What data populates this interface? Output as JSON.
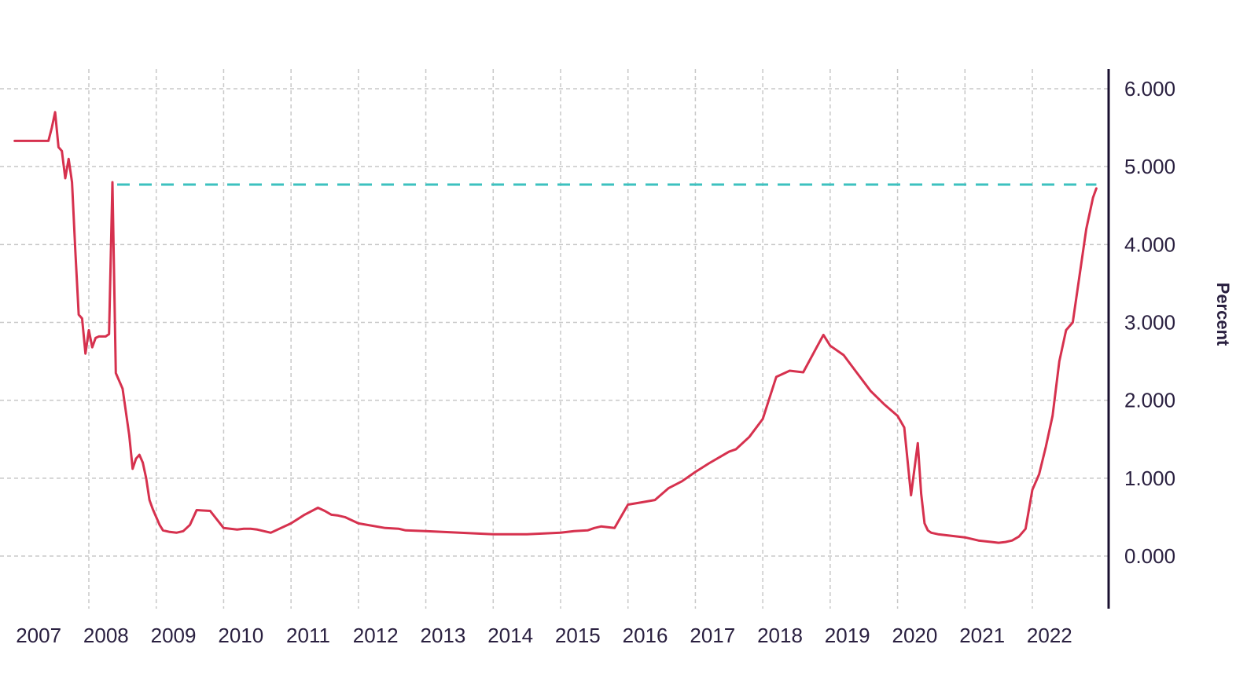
{
  "chart_data": {
    "type": "line",
    "title": "",
    "xlabel": "",
    "ylabel": "Percent",
    "x_tick_labels": [
      "2007",
      "2008",
      "2009",
      "2010",
      "2011",
      "2012",
      "2013",
      "2014",
      "2015",
      "2016",
      "2017",
      "2018",
      "2019",
      "2020",
      "2021",
      "2022"
    ],
    "y_tick_labels": [
      "0.000",
      "1.000",
      "2.000",
      "3.000",
      "4.000",
      "5.000",
      "6.000"
    ],
    "y_ticks": [
      0,
      1,
      2,
      3,
      4,
      5,
      6
    ],
    "ylim": [
      -0.7,
      6.2
    ],
    "xlim": [
      2006.6,
      2023.0
    ],
    "grid": true,
    "y_axis_position": "right",
    "colors": {
      "series": "#d6314e",
      "reference": "#3cc1bf",
      "axis": "#1a1030",
      "grid": "#c8c8c8"
    },
    "series": [
      {
        "x": [
          2006.9,
          2007.4,
          2007.45,
          2007.5,
          2007.55,
          2007.6,
          2007.65,
          2007.7,
          2007.75,
          2007.8,
          2007.85,
          2007.9,
          2007.95,
          2008.0,
          2008.05,
          2008.1,
          2008.15,
          2008.2,
          2008.25,
          2008.3,
          2008.35,
          2008.4,
          2008.5,
          2008.6,
          2008.65,
          2008.7,
          2008.75,
          2008.8,
          2008.85,
          2008.9,
          2008.95,
          2009.0,
          2009.05,
          2009.1,
          2009.2,
          2009.3,
          2009.4,
          2009.5,
          2009.6,
          2009.8,
          2010.0,
          2010.2,
          2010.3,
          2010.4,
          2010.5,
          2010.7,
          2011.0,
          2011.2,
          2011.4,
          2011.5,
          2011.6,
          2011.7,
          2011.8,
          2012.0,
          2012.4,
          2012.6,
          2012.7,
          2013.0,
          2013.5,
          2014.0,
          2014.5,
          2015.0,
          2015.2,
          2015.4,
          2015.5,
          2015.6,
          2015.8,
          2016.0,
          2016.2,
          2016.4,
          2016.6,
          2016.8,
          2017.0,
          2017.2,
          2017.4,
          2017.5,
          2017.6,
          2017.8,
          2018.0,
          2018.2,
          2018.4,
          2018.6,
          2018.8,
          2018.9,
          2019.0,
          2019.2,
          2019.4,
          2019.6,
          2019.8,
          2020.0,
          2020.1,
          2020.2,
          2020.3,
          2020.35,
          2020.4,
          2020.45,
          2020.5,
          2020.6,
          2020.7,
          2020.8,
          2021.0,
          2021.2,
          2021.4,
          2021.5,
          2021.6,
          2021.7,
          2021.8,
          2021.9,
          2022.0,
          2022.1,
          2022.2,
          2022.3,
          2022.4,
          2022.5,
          2022.6,
          2022.7,
          2022.8,
          2022.9,
          2022.95
        ],
        "y": [
          5.33,
          5.33,
          5.5,
          5.7,
          5.25,
          5.2,
          4.85,
          5.1,
          4.8,
          3.9,
          3.1,
          3.05,
          2.6,
          2.9,
          2.68,
          2.8,
          2.82,
          2.82,
          2.82,
          2.85,
          4.8,
          2.35,
          2.15,
          1.55,
          1.12,
          1.25,
          1.3,
          1.2,
          1.0,
          0.72,
          0.6,
          0.5,
          0.4,
          0.33,
          0.31,
          0.3,
          0.32,
          0.4,
          0.59,
          0.58,
          0.36,
          0.34,
          0.35,
          0.35,
          0.34,
          0.3,
          0.42,
          0.53,
          0.62,
          0.58,
          0.53,
          0.52,
          0.5,
          0.42,
          0.36,
          0.35,
          0.33,
          0.32,
          0.3,
          0.28,
          0.28,
          0.3,
          0.32,
          0.33,
          0.36,
          0.38,
          0.36,
          0.66,
          0.69,
          0.72,
          0.87,
          0.96,
          1.08,
          1.19,
          1.29,
          1.34,
          1.37,
          1.53,
          1.76,
          2.3,
          2.38,
          2.36,
          2.68,
          2.84,
          2.7,
          2.58,
          2.35,
          2.12,
          1.95,
          1.8,
          1.65,
          0.78,
          1.45,
          0.8,
          0.42,
          0.33,
          0.3,
          0.28,
          0.27,
          0.26,
          0.24,
          0.2,
          0.18,
          0.17,
          0.18,
          0.2,
          0.25,
          0.35,
          0.85,
          1.05,
          1.4,
          1.8,
          2.5,
          2.9,
          3.0,
          3.6,
          4.2,
          4.6,
          4.72
        ]
      }
    ],
    "reference_lines": [
      {
        "y": 4.77,
        "x_start": 2008.42,
        "x_end": 2022.95,
        "style": "dashed"
      }
    ]
  }
}
